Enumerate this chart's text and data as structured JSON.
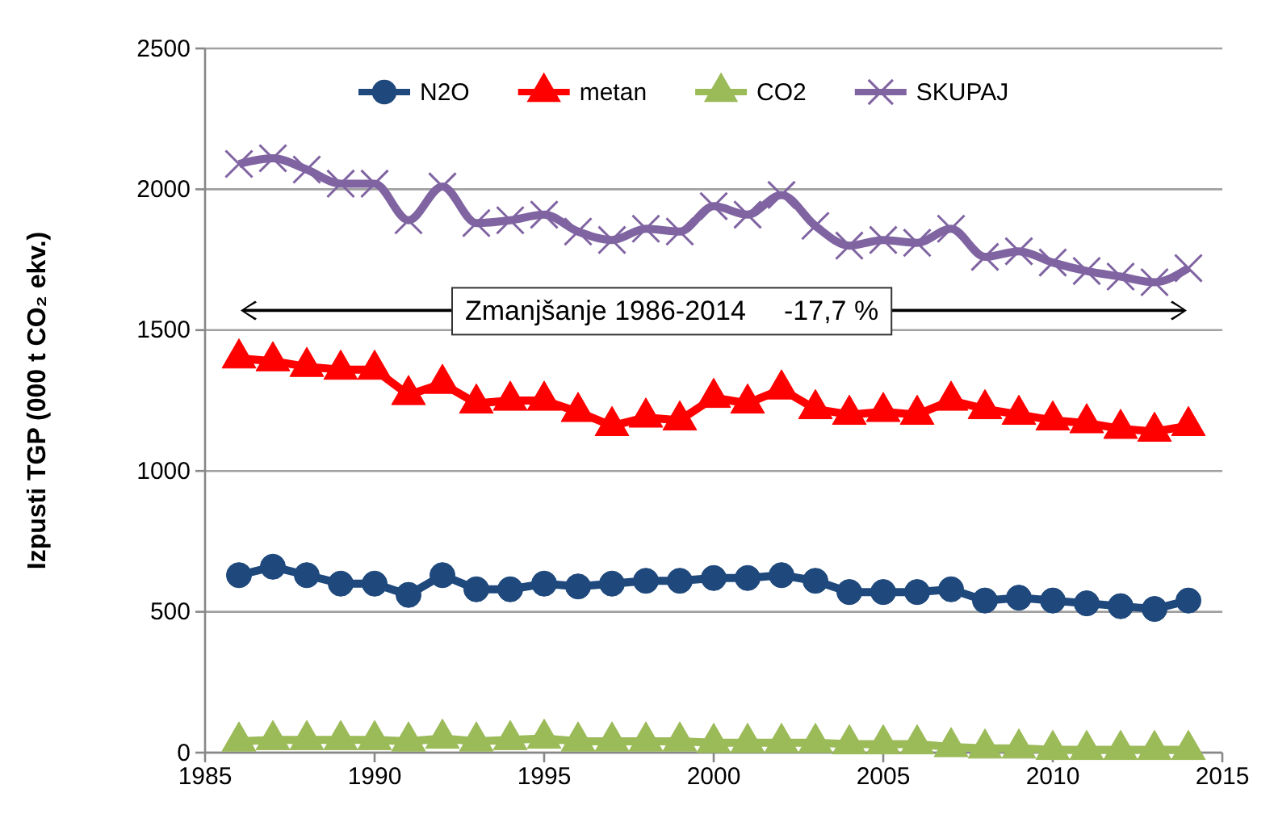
{
  "chart_data": {
    "type": "line",
    "ylabel": "Izpusti TGP (000 t CO₂ ekv.)",
    "x": [
      1986,
      1987,
      1988,
      1989,
      1990,
      1991,
      1992,
      1993,
      1994,
      1995,
      1996,
      1997,
      1998,
      1999,
      2000,
      2001,
      2002,
      2003,
      2004,
      2005,
      2006,
      2007,
      2008,
      2009,
      2010,
      2011,
      2012,
      2013,
      2014
    ],
    "series": [
      {
        "name": "N2O",
        "color": "#1f497d",
        "marker": "circle",
        "values": [
          630,
          660,
          630,
          600,
          600,
          560,
          630,
          580,
          580,
          600,
          590,
          600,
          610,
          610,
          620,
          620,
          630,
          610,
          570,
          570,
          570,
          580,
          540,
          550,
          540,
          530,
          520,
          510,
          540
        ]
      },
      {
        "name": "metan",
        "color": "#ff0000",
        "marker": "triangle",
        "values": [
          1400,
          1390,
          1370,
          1360,
          1360,
          1270,
          1310,
          1240,
          1250,
          1250,
          1210,
          1160,
          1190,
          1180,
          1260,
          1240,
          1290,
          1220,
          1200,
          1210,
          1200,
          1250,
          1220,
          1200,
          1180,
          1170,
          1150,
          1140,
          1160
        ]
      },
      {
        "name": "CO2",
        "color": "#9bbb59",
        "marker": "triangle",
        "values": [
          40,
          45,
          45,
          45,
          45,
          40,
          50,
          40,
          45,
          50,
          40,
          40,
          40,
          40,
          35,
          35,
          35,
          35,
          30,
          30,
          30,
          20,
          15,
          15,
          10,
          10,
          10,
          10,
          10
        ]
      },
      {
        "name": "SKUPAJ",
        "color": "#8064a2",
        "marker": "cross",
        "values": [
          2090,
          2110,
          2070,
          2020,
          2020,
          1890,
          2010,
          1880,
          1890,
          1910,
          1850,
          1820,
          1860,
          1850,
          1940,
          1910,
          1980,
          1870,
          1800,
          1820,
          1810,
          1860,
          1760,
          1780,
          1740,
          1710,
          1690,
          1670,
          1720
        ]
      }
    ],
    "xlim": [
      1985,
      2015
    ],
    "xticks": [
      1985,
      1990,
      1995,
      2000,
      2005,
      2010,
      2015
    ],
    "ylim": [
      0,
      2500
    ],
    "yticks": [
      0,
      500,
      1000,
      1500,
      2000,
      2500
    ],
    "grid": "y",
    "legend": "top",
    "annotations": [
      "Zmanjšanje 1986-2014     -17,7 %"
    ]
  }
}
